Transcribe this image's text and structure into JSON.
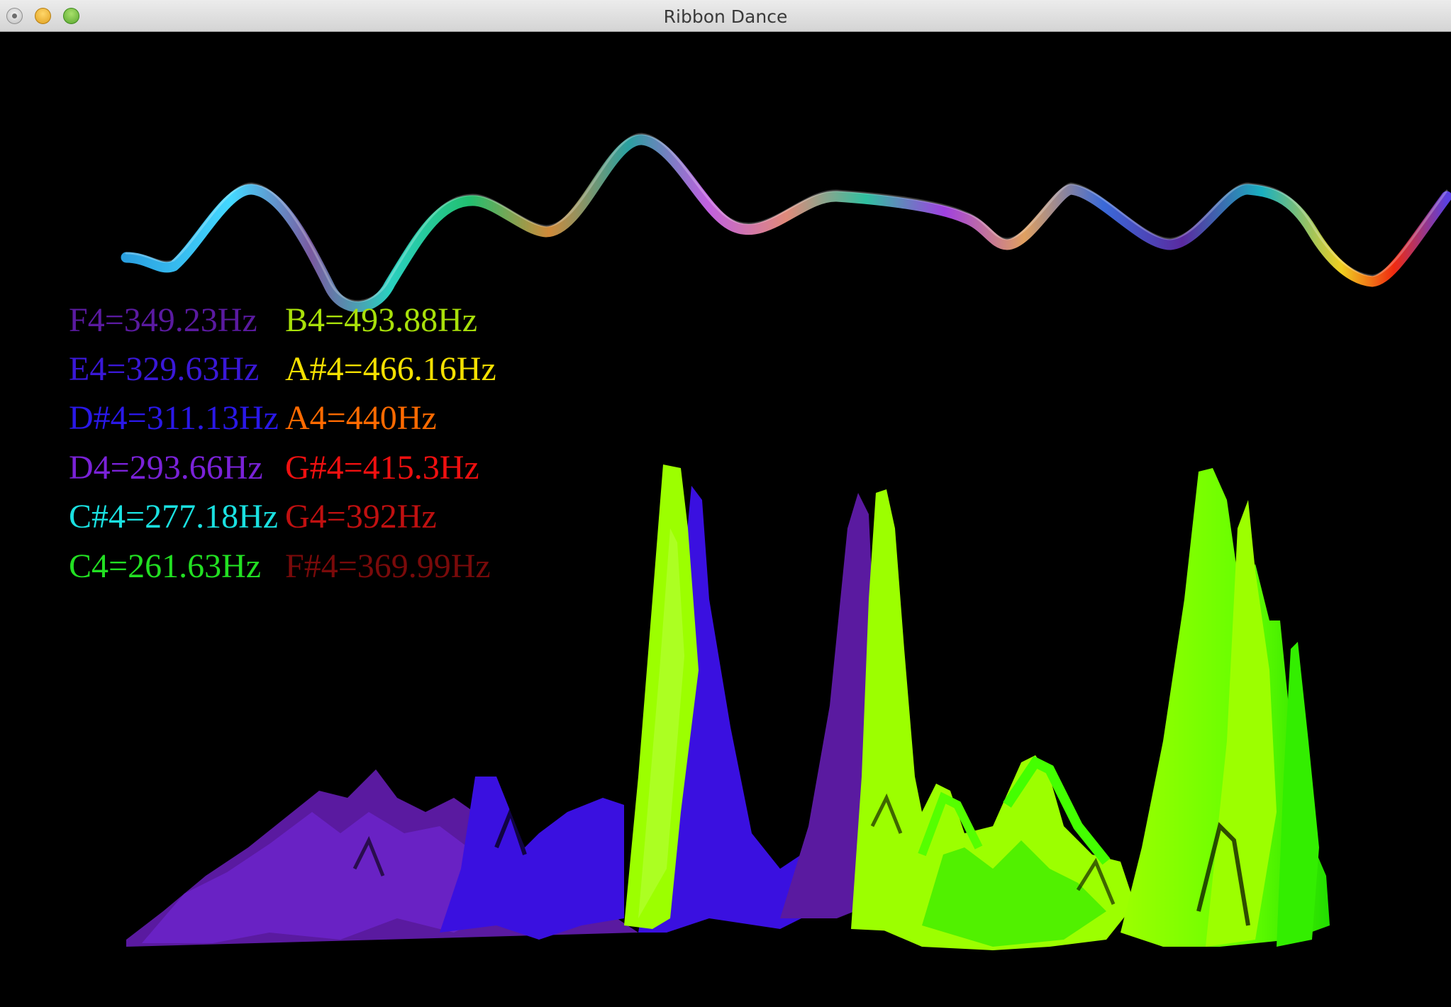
{
  "window": {
    "title": "Ribbon Dance"
  },
  "legend": {
    "left_column": [
      {
        "text": "F4=349.23Hz",
        "color": "#5a1aa0"
      },
      {
        "text": "E4=329.63Hz",
        "color": "#3a18d8"
      },
      {
        "text": "D#4=311.13Hz",
        "color": "#2a18e8"
      },
      {
        "text": "D4=293.66Hz",
        "color": "#7a22d8"
      },
      {
        "text": "C#4=277.18Hz",
        "color": "#1ae0e0"
      },
      {
        "text": "C4=261.63Hz",
        "color": "#22e022"
      }
    ],
    "right_column": [
      {
        "text": "B4=493.88Hz",
        "color": "#a8e00a"
      },
      {
        "text": "A#4=466.16Hz",
        "color": "#f4e000"
      },
      {
        "text": "A4=440Hz",
        "color": "#ff6a00"
      },
      {
        "text": "G#4=415.3Hz",
        "color": "#f01010"
      },
      {
        "text": "G4=392Hz",
        "color": "#c01010"
      },
      {
        "text": "F#4=369.99Hz",
        "color": "#7a0a0a"
      }
    ]
  },
  "colors": {
    "background": "#000000",
    "spectrum_purple": "#5a1aa0",
    "spectrum_blue": "#3a10e0",
    "spectrum_lime": "#9cff00",
    "spectrum_green": "#22ee00"
  }
}
